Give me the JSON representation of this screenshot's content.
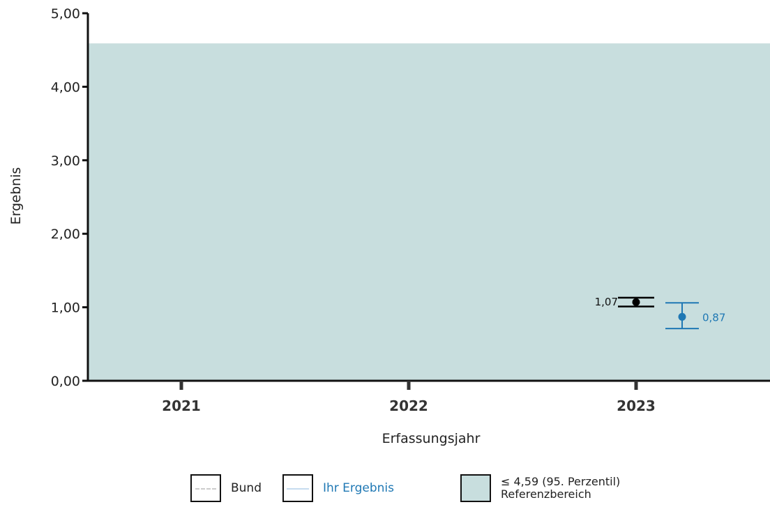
{
  "chart_data": {
    "type": "scatter",
    "xlabel": "Erfassungsjahr",
    "ylabel": "Ergebnis",
    "categories": [
      "2021",
      "2022",
      "2023"
    ],
    "y_ticks": [
      "0,00",
      "1,00",
      "2,00",
      "3,00",
      "4,00",
      "5,00"
    ],
    "ylim": [
      0,
      5
    ],
    "reference_area": {
      "max": 4.59,
      "color": "#c8dede"
    },
    "series": [
      {
        "name": "Bund",
        "color": "#000000",
        "points": [
          {
            "x": "2023",
            "y": 1.07,
            "lower": 1.01,
            "upper": 1.13,
            "label": "1,07"
          }
        ]
      },
      {
        "name": "Ihr Ergebnis",
        "color": "#1f78b4",
        "points": [
          {
            "x": "2023",
            "y": 0.87,
            "lower": 0.71,
            "upper": 1.06,
            "label": "0,87"
          }
        ]
      }
    ]
  },
  "legend": {
    "bund": "Bund",
    "ihr": "Ihr Ergebnis",
    "ref_line1": "≤ 4,59 (95. Perzentil)",
    "ref_line2": "Referenzbereich"
  }
}
